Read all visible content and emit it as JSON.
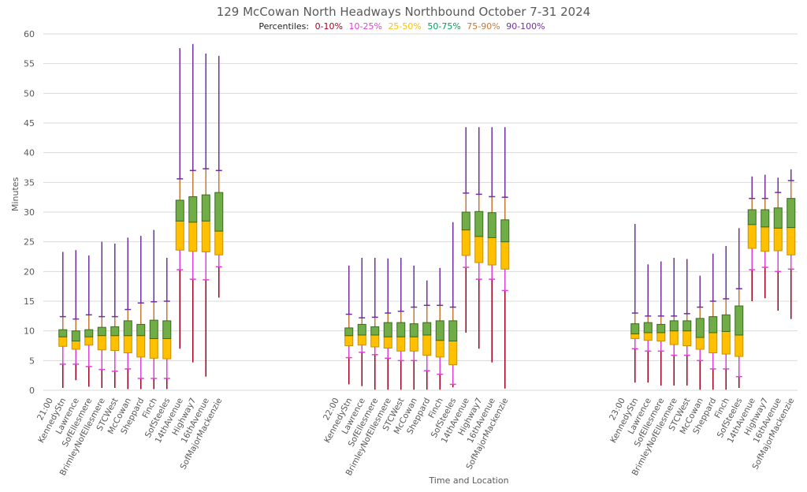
{
  "chart_data": {
    "type": "boxplot",
    "title": "129 McCowan North Headways Northbound October 7-31 2024",
    "legend": {
      "prefix": "Percentiles:",
      "position": "top-center",
      "entries": [
        {
          "label": "0-10%",
          "color": "#a50021"
        },
        {
          "label": "10-25%",
          "color": "#e040d8"
        },
        {
          "label": "25-50%",
          "color": "#ffc000"
        },
        {
          "label": "50-75%",
          "color": "#00a05a"
        },
        {
          "label": "75-90%",
          "color": "#c87832"
        },
        {
          "label": "90-100%",
          "color": "#7030a0"
        }
      ]
    },
    "xlabel": "Time and Location",
    "ylabel": "Minutes",
    "ylim": [
      0,
      60
    ],
    "yticks": [
      0,
      5,
      10,
      15,
      20,
      25,
      30,
      35,
      40,
      45,
      50,
      55,
      60
    ],
    "grid": true,
    "series_fields": [
      "min",
      "p10",
      "p25",
      "p50",
      "p75",
      "p90",
      "max"
    ],
    "colors": {
      "whisker_low": "#a50021",
      "whisker_p10": "#e040d8",
      "box_lower": "#ffc000",
      "box_lower_border": "#c89000",
      "box_upper": "#70ad47",
      "box_upper_border": "#3a6a20",
      "whisker_p75": "#c87832",
      "whisker_high": "#7030a0",
      "grid": "#d9d9d9"
    },
    "groups": [
      {
        "label": "21:00",
        "stops": [
          {
            "name": "KennedyStn",
            "values": [
              0.4,
              4.4,
              7.4,
              9.0,
              10.2,
              12.4,
              23.3
            ]
          },
          {
            "name": "Lawrence",
            "values": [
              1.7,
              4.4,
              6.9,
              8.3,
              10.0,
              12.0,
              23.6
            ]
          },
          {
            "name": "SofEllesmere",
            "values": [
              0.6,
              4.0,
              7.6,
              9.0,
              10.2,
              12.7,
              22.7
            ]
          },
          {
            "name": "BrimleyNofEllesmere",
            "values": [
              0.4,
              3.5,
              6.8,
              9.2,
              10.6,
              12.4,
              25.0
            ]
          },
          {
            "name": "STCWest",
            "values": [
              0.4,
              3.2,
              6.7,
              9.2,
              10.7,
              12.4,
              24.7
            ]
          },
          {
            "name": "McCowan",
            "values": [
              0.2,
              3.6,
              6.3,
              9.2,
              11.7,
              13.6,
              25.7
            ]
          },
          {
            "name": "Sheppard",
            "values": [
              0.2,
              2.0,
              5.6,
              9.2,
              11.1,
              14.7,
              26.0
            ]
          },
          {
            "name": "Finch",
            "values": [
              0.2,
              2.0,
              5.4,
              8.7,
              11.8,
              14.9,
              27.0
            ]
          },
          {
            "name": "SofSteeles",
            "values": [
              0.2,
              2.0,
              5.3,
              8.7,
              11.7,
              15.0,
              22.3
            ]
          },
          {
            "name": "14thAvenue",
            "values": [
              7.0,
              20.3,
              23.6,
              28.5,
              32.0,
              35.6,
              57.6
            ]
          },
          {
            "name": "Highway7",
            "values": [
              4.7,
              18.7,
              23.4,
              28.3,
              32.6,
              37.0,
              58.3
            ]
          },
          {
            "name": "16thAvenue",
            "values": [
              2.3,
              18.6,
              23.3,
              28.5,
              32.9,
              37.3,
              56.7
            ]
          },
          {
            "name": "SofMajorMackenzie",
            "values": [
              15.6,
              20.8,
              22.8,
              26.8,
              33.3,
              37.0,
              56.3
            ]
          }
        ]
      },
      {
        "label": "22:00",
        "stops": [
          {
            "name": "KennedyStn",
            "values": [
              1.0,
              5.5,
              7.5,
              9.2,
              10.5,
              12.8,
              21.0
            ]
          },
          {
            "name": "Lawrence",
            "values": [
              0.7,
              6.4,
              7.6,
              9.3,
              11.1,
              12.2,
              22.3
            ]
          },
          {
            "name": "SofEllesmere",
            "values": [
              0.1,
              6.0,
              7.3,
              9.3,
              10.7,
              12.3,
              22.3
            ]
          },
          {
            "name": "BrimleyNofEllesmere",
            "values": [
              0.1,
              5.4,
              7.1,
              9.0,
              11.4,
              13.0,
              22.2
            ]
          },
          {
            "name": "STCWest",
            "values": [
              0.1,
              5.0,
              6.6,
              9.0,
              11.4,
              13.3,
              22.3
            ]
          },
          {
            "name": "McCowan",
            "values": [
              0.1,
              5.0,
              6.6,
              9.0,
              11.2,
              14.0,
              21.0
            ]
          },
          {
            "name": "Sheppard",
            "values": [
              0.1,
              3.3,
              5.9,
              9.3,
              11.4,
              14.3,
              18.5
            ]
          },
          {
            "name": "Finch",
            "values": [
              0.1,
              2.7,
              5.6,
              8.4,
              11.7,
              14.3,
              20.6
            ]
          },
          {
            "name": "SofSteeles",
            "values": [
              0.5,
              1.0,
              4.3,
              8.3,
              11.7,
              14.0,
              28.3
            ]
          },
          {
            "name": "14thAvenue",
            "values": [
              9.7,
              20.7,
              22.7,
              27.0,
              30.0,
              33.2,
              44.3
            ]
          },
          {
            "name": "Highway7",
            "values": [
              7.0,
              18.7,
              21.5,
              25.9,
              30.1,
              33.0,
              44.3
            ]
          },
          {
            "name": "16thAvenue",
            "values": [
              4.7,
              18.7,
              21.1,
              25.7,
              29.9,
              32.6,
              44.3
            ]
          },
          {
            "name": "SofMajorMackenzie",
            "values": [
              0.3,
              16.8,
              20.4,
              25.0,
              28.7,
              32.5,
              44.3
            ]
          }
        ]
      },
      {
        "label": "23:00",
        "stops": [
          {
            "name": "KennedyStn",
            "values": [
              1.3,
              7.0,
              8.7,
              9.5,
              11.2,
              13.0,
              28.0
            ]
          },
          {
            "name": "Lawrence",
            "values": [
              1.3,
              6.6,
              8.4,
              9.7,
              11.4,
              12.5,
              21.2
            ]
          },
          {
            "name": "SofEllesmere",
            "values": [
              0.8,
              6.6,
              8.3,
              9.7,
              11.1,
              12.5,
              21.7
            ]
          },
          {
            "name": "BrimleyNofEllesmere",
            "values": [
              0.8,
              5.9,
              7.7,
              10.0,
              11.7,
              12.5,
              22.3
            ]
          },
          {
            "name": "STCWest",
            "values": [
              0.8,
              5.9,
              7.5,
              10.0,
              11.7,
              12.9,
              22.1
            ]
          },
          {
            "name": "McCowan",
            "values": [
              0.1,
              5.0,
              6.9,
              8.9,
              12.1,
              14.0,
              19.3
            ]
          },
          {
            "name": "Sheppard",
            "values": [
              0.1,
              3.6,
              6.3,
              9.7,
              12.4,
              15.0,
              23.0
            ]
          },
          {
            "name": "Finch",
            "values": [
              0.1,
              3.6,
              6.1,
              9.9,
              12.7,
              15.4,
              24.3
            ]
          },
          {
            "name": "SofSteeles",
            "values": [
              0.4,
              2.3,
              5.7,
              9.3,
              14.2,
              17.1,
              27.3
            ]
          },
          {
            "name": "14thAvenue",
            "values": [
              15.0,
              20.3,
              23.9,
              27.9,
              30.4,
              32.3,
              36.0
            ]
          },
          {
            "name": "Highway7",
            "values": [
              15.5,
              20.7,
              23.4,
              27.5,
              30.4,
              32.3,
              36.3
            ]
          },
          {
            "name": "16thAvenue",
            "values": [
              13.4,
              20.0,
              23.5,
              27.3,
              30.7,
              33.3,
              35.8
            ]
          },
          {
            "name": "SofMajorMackenzie",
            "values": [
              12.0,
              20.4,
              22.8,
              27.4,
              32.3,
              35.3,
              37.2
            ]
          }
        ]
      }
    ]
  }
}
